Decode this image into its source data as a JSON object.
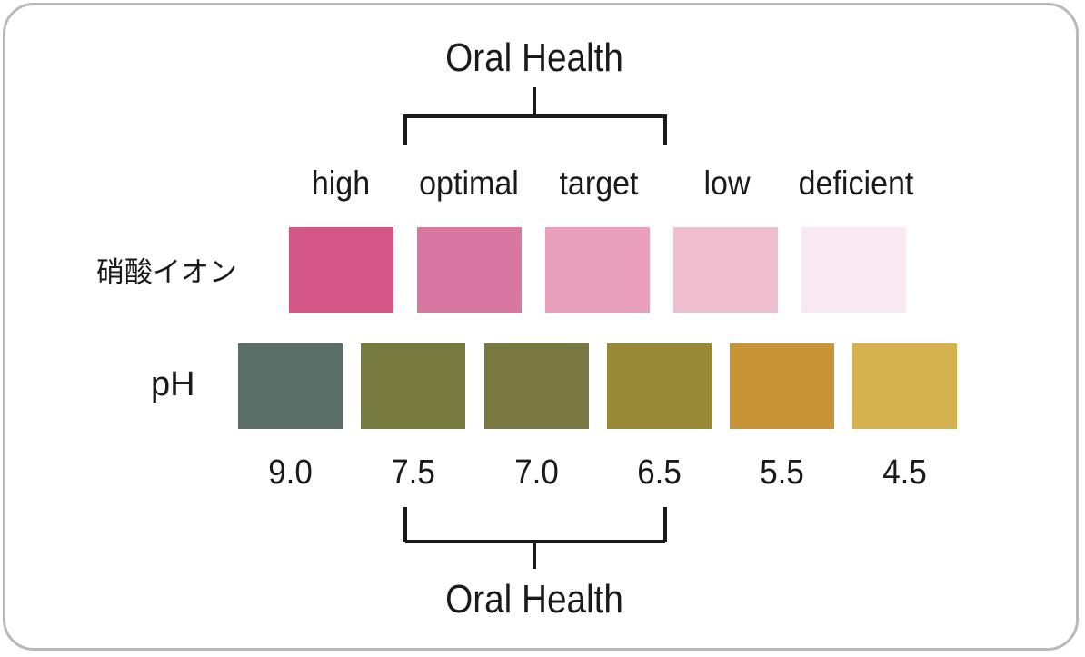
{
  "top_title": "Oral Health",
  "bottom_title": "Oral Health",
  "levels": [
    "high",
    "optimal",
    "target",
    "low",
    "deficient"
  ],
  "nitrate_label": "硝酸イオン",
  "ph_label": "pH",
  "nitrate_colors": [
    "#d45687",
    "#d8779f",
    "#e9a1bb",
    "#efbfd0",
    "#f7e8f1"
  ],
  "ph_colors": [
    "#5a6e67",
    "#767a3e",
    "#787941",
    "#978936",
    "#c79537",
    "#d6b150"
  ],
  "ph_values": [
    "9.0",
    "7.5",
    "7.0",
    "6.5",
    "5.5",
    "4.5"
  ]
}
